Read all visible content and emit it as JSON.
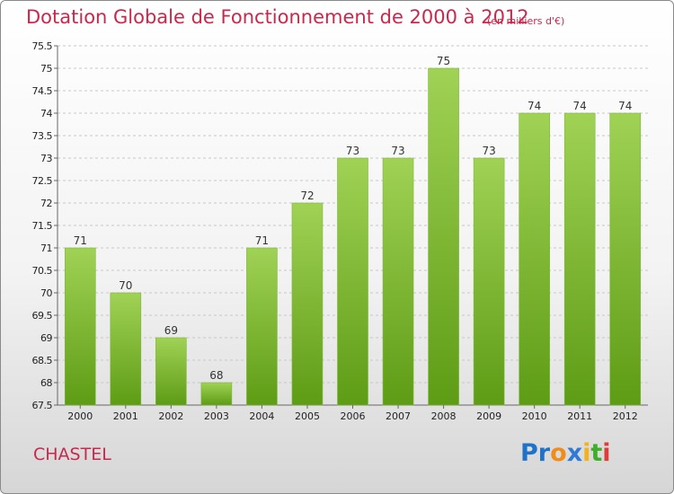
{
  "header": {
    "title": "Dotation Globale de Fonctionnement de 2000 à 2012",
    "subtitle": "(en milliers d'€)"
  },
  "footer": {
    "commune": "CHASTEL",
    "logo_text": "Proxiti",
    "logo_letters": [
      "P",
      "r",
      "o",
      "x",
      "i",
      "t",
      "i"
    ],
    "logo_colors": [
      "#1e73c9",
      "#1e73c9",
      "#f08c1a",
      "#2f7ad6",
      "#f2b21e",
      "#3fae2a",
      "#e03a3a"
    ]
  },
  "colors": {
    "accent": "#c8284c",
    "bar_top": "#a0d255",
    "bar_bottom": "#5e9c15",
    "grid": "#c8c8c8",
    "axis_text": "#222222"
  },
  "chart_data": {
    "type": "bar",
    "categories": [
      "2000",
      "2001",
      "2002",
      "2003",
      "2004",
      "2005",
      "2006",
      "2007",
      "2008",
      "2009",
      "2010",
      "2011",
      "2012"
    ],
    "values": [
      71,
      70,
      69,
      68,
      71,
      72,
      73,
      73,
      75,
      73,
      74,
      74,
      74
    ],
    "data_labels": [
      "71",
      "70",
      "69",
      "68",
      "71",
      "72",
      "73",
      "73",
      "75",
      "73",
      "74",
      "74",
      "74"
    ],
    "ylim": [
      67.5,
      75.5
    ],
    "yticks": [
      67.5,
      68,
      68.5,
      69,
      69.5,
      70,
      70.5,
      71,
      71.5,
      72,
      72.5,
      73,
      73.5,
      74,
      74.5,
      75,
      75.5
    ],
    "ytick_labels": [
      "67.5",
      "68",
      "68.5",
      "69",
      "69.5",
      "70",
      "70.5",
      "71",
      "71.5",
      "72",
      "72.5",
      "73",
      "73.5",
      "74",
      "74.5",
      "75",
      "75.5"
    ],
    "grid": true,
    "title": "Dotation Globale de Fonctionnement de 2000 à 2012",
    "xlabel": "",
    "ylabel": ""
  }
}
